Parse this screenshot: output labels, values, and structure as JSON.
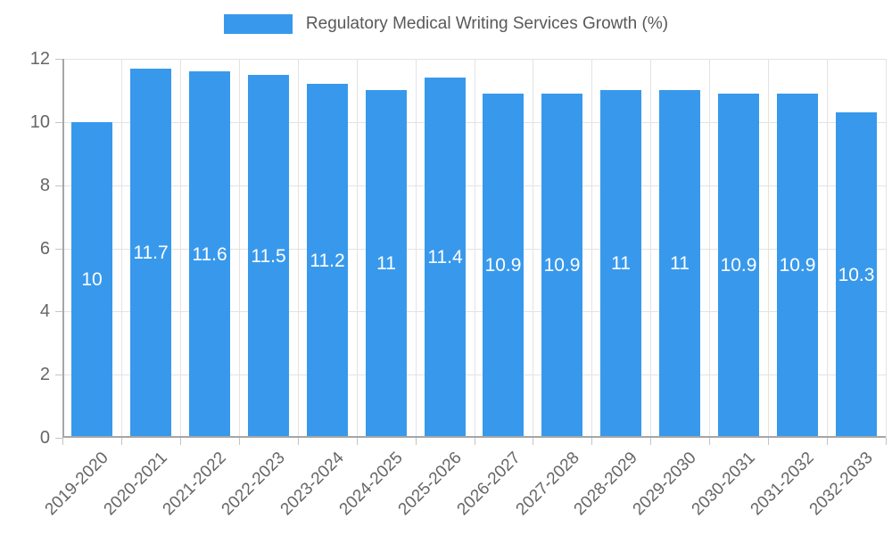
{
  "legend": {
    "label": "Regulatory Medical Writing Services Growth (%)",
    "swatch_color": "#3899EC"
  },
  "chart_data": {
    "type": "bar",
    "title": "Regulatory Medical Writing Services Growth (%)",
    "categories": [
      "2019-2020",
      "2020-2021",
      "2021-2022",
      "2022-2023",
      "2023-2024",
      "2024-2025",
      "2025-2026",
      "2026-2027",
      "2027-2028",
      "2028-2029",
      "2029-2030",
      "2030-2031",
      "2031-2032",
      "2032-2033"
    ],
    "values": [
      10,
      11.7,
      11.6,
      11.5,
      11.2,
      11,
      11.4,
      10.9,
      10.9,
      11,
      11,
      10.9,
      10.9,
      10.3
    ],
    "value_labels": [
      "10",
      "11.7",
      "11.6",
      "11.5",
      "11.2",
      "11",
      "11.4",
      "10.9",
      "10.9",
      "11",
      "11",
      "10.9",
      "10.9",
      "10.3"
    ],
    "xlabel": "",
    "ylabel": "",
    "ylim": [
      0,
      12
    ],
    "yticks": [
      0,
      2,
      4,
      6,
      8,
      10,
      12
    ],
    "grid": true,
    "legend_position": "top",
    "value_label_position": "inside-center",
    "colors": {
      "bar": "#3899EC",
      "bar_value_text": "#ffffff",
      "gridline": "#E3E3E3",
      "axis_line": "#A6A6A6",
      "tick_text": "#666666",
      "legend_text": "#58595B"
    }
  }
}
